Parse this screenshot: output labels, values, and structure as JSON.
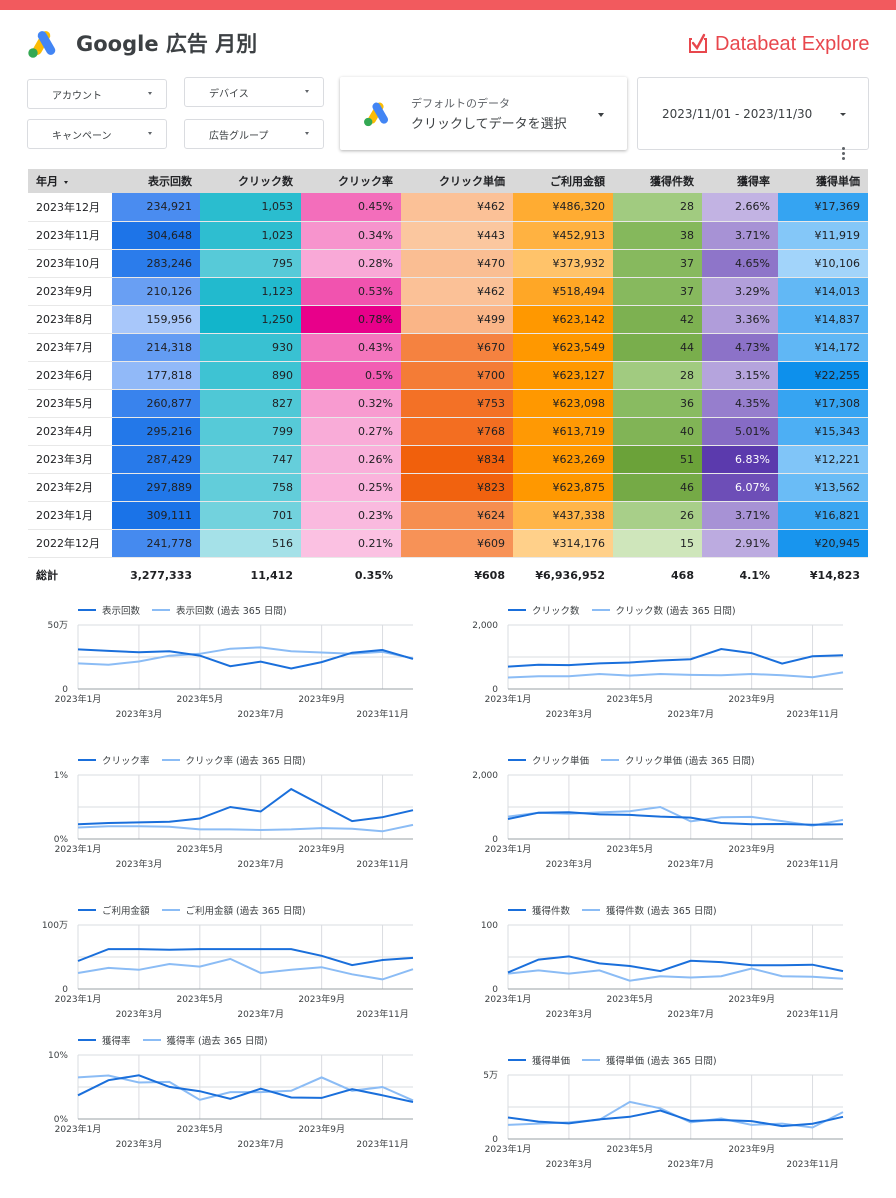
{
  "header": {
    "title": "Google 広告 月別",
    "brand": "Databeat Explore",
    "accent_color": "#f25a5e"
  },
  "filters": {
    "account": "アカウント",
    "device": "デバイス",
    "campaign": "キャンペーン",
    "adgroup": "広告グループ"
  },
  "data_source": {
    "line1": "デフォルトのデータ",
    "line2": "クリックしてデータを選択"
  },
  "date_range": "2023/11/01 - 2023/11/30",
  "table": {
    "columns": [
      "年月",
      "表示回数",
      "クリック数",
      "クリック率",
      "クリック単価",
      "ご利用金額",
      "獲得件数",
      "獲得率",
      "獲得単価"
    ],
    "rows": [
      [
        "2023年12月",
        "234,921",
        "1,053",
        "0.45%",
        "¥462",
        "¥486,320",
        "28",
        "2.66%",
        "¥17,369"
      ],
      [
        "2023年11月",
        "304,648",
        "1,023",
        "0.34%",
        "¥443",
        "¥452,913",
        "38",
        "3.71%",
        "¥11,919"
      ],
      [
        "2023年10月",
        "283,246",
        "795",
        "0.28%",
        "¥470",
        "¥373,932",
        "37",
        "4.65%",
        "¥10,106"
      ],
      [
        "2023年9月",
        "210,126",
        "1,123",
        "0.53%",
        "¥462",
        "¥518,494",
        "37",
        "3.29%",
        "¥14,013"
      ],
      [
        "2023年8月",
        "159,956",
        "1,250",
        "0.78%",
        "¥499",
        "¥623,142",
        "42",
        "3.36%",
        "¥14,837"
      ],
      [
        "2023年7月",
        "214,318",
        "930",
        "0.43%",
        "¥670",
        "¥623,549",
        "44",
        "4.73%",
        "¥14,172"
      ],
      [
        "2023年6月",
        "177,818",
        "890",
        "0.5%",
        "¥700",
        "¥623,127",
        "28",
        "3.15%",
        "¥22,255"
      ],
      [
        "2023年5月",
        "260,877",
        "827",
        "0.32%",
        "¥753",
        "¥623,098",
        "36",
        "4.35%",
        "¥17,308"
      ],
      [
        "2023年4月",
        "295,216",
        "799",
        "0.27%",
        "¥768",
        "¥613,719",
        "40",
        "5.01%",
        "¥15,343"
      ],
      [
        "2023年3月",
        "287,429",
        "747",
        "0.26%",
        "¥834",
        "¥623,269",
        "51",
        "6.83%",
        "¥12,221"
      ],
      [
        "2023年2月",
        "297,889",
        "758",
        "0.25%",
        "¥823",
        "¥623,875",
        "46",
        "6.07%",
        "¥13,562"
      ],
      [
        "2023年1月",
        "309,111",
        "701",
        "0.23%",
        "¥624",
        "¥437,338",
        "26",
        "3.71%",
        "¥16,821"
      ],
      [
        "2022年12月",
        "241,778",
        "516",
        "0.21%",
        "¥609",
        "¥314,176",
        "15",
        "2.91%",
        "¥20,945"
      ]
    ],
    "total": [
      "総計",
      "3,277,333",
      "11,412",
      "0.35%",
      "¥608",
      "¥6,936,952",
      "468",
      "4.1%",
      "¥14,823"
    ],
    "heat_colors": [
      [
        "#1a73e8",
        "#4a8cf0",
        "#a8c7fa"
      ],
      [
        "#12b5cb",
        "#3fc3d3",
        "#a5e1e8"
      ],
      [
        "#e8008a",
        "#f25fb4",
        "#fbc1e2"
      ],
      [
        "#f1600c",
        "#f6894a",
        "#fbc79f"
      ],
      [
        "#ff9800",
        "#ffae38",
        "#ffd08a"
      ],
      [
        "#6ba239",
        "#8fc069",
        "#cfe6bb"
      ],
      [
        "#5b3aad",
        "#8c72c8",
        "#c2b3e3"
      ],
      [
        "#0d90ec",
        "#3fa9f3",
        "#a2d4fa"
      ]
    ]
  },
  "charts": [
    {
      "id": "impressions",
      "legend": [
        "表示回数",
        "表示回数 (過去 365 日間)"
      ],
      "y_ticks": [
        "50万",
        "0"
      ],
      "y_max": 500000,
      "x_labels_row1": [
        "2023年1月",
        "2023年5月",
        "2023年9月"
      ],
      "x_labels_row2": [
        "2023年3月",
        "2023年7月",
        "2023年11月"
      ],
      "current": [
        309111,
        297889,
        287429,
        295216,
        260877,
        177818,
        214318,
        159956,
        210126,
        283246,
        304648,
        234921
      ],
      "previous": [
        200000,
        190000,
        215000,
        260000,
        275000,
        315000,
        325000,
        295000,
        285000,
        275000,
        290000,
        240000
      ]
    },
    {
      "id": "clicks",
      "legend": [
        "クリック数",
        "クリック数 (過去 365 日間)"
      ],
      "y_ticks": [
        "2,000",
        "0"
      ],
      "y_max": 2000,
      "x_labels_row1": [
        "2023年1月",
        "2023年5月",
        "2023年9月"
      ],
      "x_labels_row2": [
        "2023年3月",
        "2023年7月",
        "2023年11月"
      ],
      "current": [
        701,
        758,
        747,
        799,
        827,
        890,
        930,
        1250,
        1123,
        795,
        1023,
        1053
      ],
      "previous": [
        360,
        400,
        400,
        470,
        420,
        470,
        440,
        430,
        470,
        430,
        370,
        520
      ]
    },
    {
      "id": "ctr",
      "legend": [
        "クリック率",
        "クリック率 (過去 365 日間)"
      ],
      "y_ticks": [
        "1%",
        "0%"
      ],
      "y_max": 1,
      "x_labels_row1": [
        "2023年1月",
        "2023年5月",
        "2023年9月"
      ],
      "x_labels_row2": [
        "2023年3月",
        "2023年7月",
        "2023年11月"
      ],
      "current": [
        0.23,
        0.25,
        0.26,
        0.27,
        0.32,
        0.5,
        0.43,
        0.78,
        0.53,
        0.28,
        0.34,
        0.45
      ],
      "previous": [
        0.18,
        0.2,
        0.2,
        0.19,
        0.15,
        0.15,
        0.14,
        0.15,
        0.17,
        0.16,
        0.12,
        0.22
      ]
    },
    {
      "id": "cpc",
      "legend": [
        "クリック単価",
        "クリック単価 (過去 365 日間)"
      ],
      "y_ticks": [
        "2,000",
        "0"
      ],
      "y_max": 2000,
      "x_labels_row1": [
        "2023年1月",
        "2023年5月",
        "2023年9月"
      ],
      "x_labels_row2": [
        "2023年3月",
        "2023年7月",
        "2023年11月"
      ],
      "current": [
        624,
        823,
        834,
        768,
        753,
        700,
        670,
        499,
        462,
        470,
        443,
        462
      ],
      "previous": [
        700,
        820,
        790,
        830,
        870,
        1000,
        550,
        680,
        690,
        560,
        420,
        600
      ]
    },
    {
      "id": "cost",
      "legend": [
        "ご利用金額",
        "ご利用金額 (過去 365 日間)"
      ],
      "y_ticks": [
        "100万",
        "0"
      ],
      "y_max": 1000000,
      "x_labels_row1": [
        "2023年1月",
        "2023年5月",
        "2023年9月"
      ],
      "x_labels_row2": [
        "2023年3月",
        "2023年7月",
        "2023年11月"
      ],
      "current": [
        437338,
        623875,
        623269,
        613719,
        623098,
        623127,
        623549,
        623142,
        518494,
        373932,
        452913,
        486320
      ],
      "previous": [
        250000,
        330000,
        300000,
        390000,
        350000,
        470000,
        250000,
        300000,
        340000,
        230000,
        150000,
        310000
      ]
    },
    {
      "id": "conversions",
      "legend": [
        "獲得件数",
        "獲得件数 (過去 365 日間)"
      ],
      "y_ticks": [
        "100",
        "0"
      ],
      "y_max": 100,
      "x_labels_row1": [
        "2023年1月",
        "2023年5月",
        "2023年9月"
      ],
      "x_labels_row2": [
        "2023年3月",
        "2023年7月",
        "2023年11月"
      ],
      "current": [
        26,
        46,
        51,
        40,
        36,
        28,
        44,
        42,
        37,
        37,
        38,
        28
      ],
      "previous": [
        24,
        29,
        24,
        29,
        13,
        20,
        18,
        20,
        32,
        20,
        19,
        16
      ]
    },
    {
      "id": "cvr",
      "legend": [
        "獲得率",
        "獲得率 (過去 365 日間)"
      ],
      "y_ticks": [
        "10%",
        "0%"
      ],
      "y_max": 10,
      "x_labels_row1": [
        "2023年1月",
        "2023年5月",
        "2023年9月"
      ],
      "x_labels_row2": [
        "2023年3月",
        "2023年7月",
        "2023年11月"
      ],
      "current": [
        3.71,
        6.07,
        6.83,
        5.01,
        4.35,
        3.15,
        4.73,
        3.36,
        3.29,
        4.65,
        3.71,
        2.66
      ],
      "previous": [
        6.5,
        6.8,
        5.7,
        5.8,
        3.0,
        4.2,
        4.2,
        4.4,
        6.5,
        4.4,
        5.0,
        2.9
      ]
    },
    {
      "id": "cpa",
      "legend": [
        "獲得単価",
        "獲得単価 (過去 365 日間)"
      ],
      "y_ticks": [
        "5万",
        "0"
      ],
      "y_max": 50000,
      "x_labels_row1": [
        "2023年1月",
        "2023年5月",
        "2023年9月"
      ],
      "x_labels_row2": [
        "2023年3月",
        "2023年7月",
        "2023年11月"
      ],
      "current": [
        16821,
        13562,
        12221,
        15343,
        17308,
        22255,
        14172,
        14837,
        14013,
        10106,
        11919,
        17369
      ],
      "previous": [
        11000,
        12000,
        13000,
        15000,
        29000,
        24000,
        13000,
        16000,
        11000,
        12000,
        9000,
        21000
      ]
    }
  ],
  "colors": {
    "current_line": "#1a6fdb",
    "previous_line": "#8bbcf5",
    "grid": "#dadce0",
    "axis": "#5f6368"
  },
  "icons": {
    "logo": "google-ads-logo",
    "brand": "databeat-check-icon",
    "menu": "kebab-menu-icon"
  }
}
